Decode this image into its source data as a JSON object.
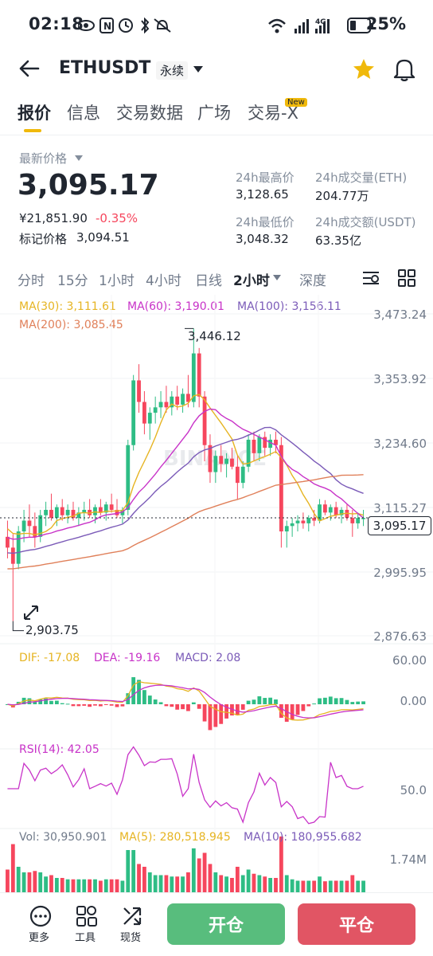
{
  "status": {
    "time": "02:18",
    "battery": "25%",
    "network": "4G"
  },
  "header": {
    "symbol": "ETHUSDT",
    "contract_type": "永续"
  },
  "tabs": [
    {
      "label": "报价",
      "active": true
    },
    {
      "label": "信息"
    },
    {
      "label": "交易数据"
    },
    {
      "label": "广场"
    },
    {
      "label": "交易-X",
      "badge": "New"
    }
  ],
  "price": {
    "latest_label": "最新价格",
    "latest": "3,095.17",
    "cny": "¥21,851.90",
    "change": "-0.35%",
    "mark_label": "标记价格",
    "mark": "3,094.51"
  },
  "stats": {
    "high_label": "24h最高价",
    "high": "3,128.65",
    "vol_eth_label": "24h成交量(ETH)",
    "vol_eth": "204.77万",
    "low_label": "24h最低价",
    "low": "3,048.32",
    "vol_usdt_label": "24h成交额(USDT)",
    "vol_usdt": "63.35亿"
  },
  "intervals": [
    "分时",
    "15分",
    "1小时",
    "4小时",
    "日线",
    "2小时",
    "深度"
  ],
  "active_interval": "2小时",
  "ma": {
    "ma30": "MA(30): 3,111.61",
    "ma60": "MA(60): 3,190.01",
    "ma100": "MA(100): 3,156.11",
    "ma200": "MA(200): 3,085.45"
  },
  "price_axis": [
    "3,473.24",
    "3,353.92",
    "3,234.60",
    "3,115.27",
    "2,995.95",
    "2,876.63"
  ],
  "current_price_tag": "3,095.17",
  "high_mark": "3,446.12",
  "low_mark": "2,903.75",
  "watermark": "BINANCE",
  "macd": {
    "dif": "DIF: -17.08",
    "dea": "DEA: -19.16",
    "macd": "MACD: 2.08",
    "axis_top": "60.00",
    "axis_zero": "0.00"
  },
  "rsi": {
    "label": "RSI(14): 42.05",
    "axis": "50.0"
  },
  "volume": {
    "vol": "Vol: 30,950.901",
    "ma5": "MA(5): 280,518.945",
    "ma10": "MA(10): 180,955.682",
    "axis": "1.74M"
  },
  "bottom": {
    "more": "更多",
    "tools": "工具",
    "spot": "现货",
    "open": "开仓",
    "close": "平仓"
  },
  "colors": {
    "up": "#2ebd85",
    "down": "#f6465d",
    "yellow": "#f0b90b",
    "ma30": "#e6b422",
    "ma60": "#c833c8",
    "ma100": "#7b5bb8",
    "ma200": "#e0805a"
  },
  "chart_data": {
    "type": "candlestick",
    "series": [
      {
        "name": "ETHUSDT",
        "ohlc": [
          [
            3060,
            3090,
            3020,
            3040
          ],
          [
            3040,
            3065,
            2903.75,
            3010
          ],
          [
            3010,
            3080,
            3000,
            3070
          ],
          [
            3070,
            3110,
            3050,
            3090
          ],
          [
            3090,
            3120,
            3060,
            3080
          ],
          [
            3080,
            3105,
            3040,
            3060
          ],
          [
            3060,
            3110,
            3050,
            3100
          ],
          [
            3100,
            3125,
            3080,
            3110
          ],
          [
            3110,
            3140,
            3090,
            3095
          ],
          [
            3095,
            3120,
            3080,
            3115
          ],
          [
            3115,
            3130,
            3090,
            3100
          ],
          [
            3100,
            3120,
            3085,
            3110
          ],
          [
            3110,
            3125,
            3090,
            3095
          ],
          [
            3095,
            3115,
            3080,
            3105
          ],
          [
            3105,
            3125,
            3090,
            3110
          ],
          [
            3110,
            3130,
            3095,
            3100
          ],
          [
            3100,
            3120,
            3085,
            3115
          ],
          [
            3115,
            3130,
            3100,
            3105
          ],
          [
            3105,
            3125,
            3090,
            3120
          ],
          [
            3120,
            3140,
            3105,
            3110
          ],
          [
            3110,
            3130,
            3095,
            3100
          ],
          [
            3100,
            3115,
            3085,
            3110
          ],
          [
            3110,
            3240,
            3100,
            3230
          ],
          [
            3230,
            3360,
            3220,
            3350
          ],
          [
            3350,
            3380,
            3290,
            3310
          ],
          [
            3310,
            3330,
            3250,
            3270
          ],
          [
            3270,
            3300,
            3240,
            3290
          ],
          [
            3290,
            3320,
            3270,
            3300
          ],
          [
            3300,
            3330,
            3280,
            3310
          ],
          [
            3310,
            3340,
            3290,
            3300
          ],
          [
            3300,
            3330,
            3285,
            3320
          ],
          [
            3320,
            3340,
            3295,
            3305
          ],
          [
            3305,
            3335,
            3290,
            3325
          ],
          [
            3325,
            3360,
            3300,
            3310
          ],
          [
            3310,
            3446.12,
            3300,
            3400
          ],
          [
            3400,
            3410,
            3300,
            3320
          ],
          [
            3320,
            3330,
            3200,
            3230
          ],
          [
            3230,
            3250,
            3160,
            3180
          ],
          [
            3180,
            3220,
            3160,
            3210
          ],
          [
            3210,
            3230,
            3180,
            3195
          ],
          [
            3195,
            3215,
            3170,
            3205
          ],
          [
            3205,
            3225,
            3185,
            3190
          ],
          [
            3190,
            3210,
            3130,
            3160
          ],
          [
            3160,
            3200,
            3150,
            3190
          ],
          [
            3190,
            3250,
            3180,
            3240
          ],
          [
            3240,
            3255,
            3200,
            3215
          ],
          [
            3215,
            3250,
            3200,
            3245
          ],
          [
            3245,
            3255,
            3210,
            3225
          ],
          [
            3225,
            3250,
            3210,
            3240
          ],
          [
            3240,
            3255,
            3215,
            3230
          ],
          [
            3230,
            3245,
            3040,
            3070
          ],
          [
            3070,
            3090,
            3040,
            3080
          ],
          [
            3080,
            3095,
            3060,
            3085
          ],
          [
            3085,
            3100,
            3070,
            3090
          ],
          [
            3090,
            3105,
            3075,
            3085
          ],
          [
            3085,
            3100,
            3070,
            3095
          ],
          [
            3095,
            3110,
            3080,
            3090
          ],
          [
            3090,
            3130,
            3085,
            3120
          ],
          [
            3120,
            3128,
            3100,
            3105
          ],
          [
            3105,
            3120,
            3090,
            3115
          ],
          [
            3115,
            3125,
            3095,
            3100
          ],
          [
            3100,
            3115,
            3085,
            3110
          ],
          [
            3110,
            3120,
            3090,
            3095
          ],
          [
            3095,
            3110,
            3060,
            3085
          ],
          [
            3085,
            3105,
            3075,
            3095
          ],
          [
            3095,
            3110,
            3080,
            3095
          ]
        ]
      }
    ],
    "ylim": [
      2876.63,
      3473.24
    ]
  }
}
